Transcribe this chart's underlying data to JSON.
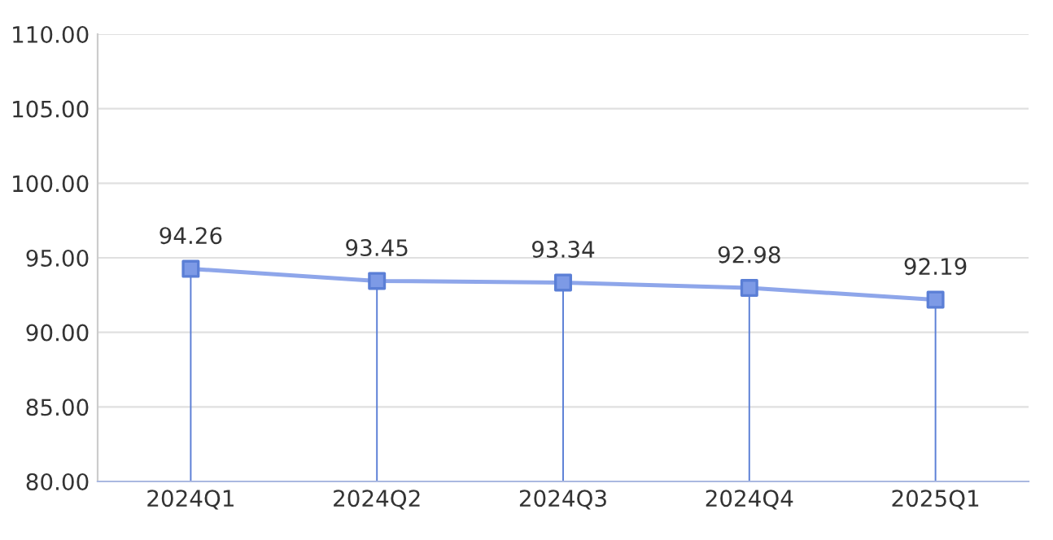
{
  "chart_data": {
    "type": "line",
    "categories": [
      "2024Q1",
      "2024Q2",
      "2024Q3",
      "2024Q4",
      "2025Q1"
    ],
    "series": [
      {
        "type": "lollipop",
        "color": "#5b7fd6",
        "marker": "square",
        "values": [
          94.26,
          93.45,
          93.34,
          92.98,
          92.19
        ],
        "value_labels": [
          "94.26",
          "93.45",
          "93.34",
          "92.98",
          "92.19"
        ]
      },
      {
        "color": "#8ea6ea",
        "marker": "none",
        "values": [
          94.26,
          93.45,
          93.34,
          92.98,
          92.19
        ]
      }
    ],
    "grid": "y",
    "ylim": [
      80,
      110
    ],
    "yticks": [
      {
        "value": 80,
        "label": "80.00"
      },
      {
        "value": 85,
        "label": "85.00"
      },
      {
        "value": 90,
        "label": "90.00"
      },
      {
        "value": 95,
        "label": "95.00"
      },
      {
        "value": 100,
        "label": "100.00"
      },
      {
        "value": 105,
        "label": "105.00"
      },
      {
        "value": 110,
        "label": "110.00"
      }
    ]
  }
}
